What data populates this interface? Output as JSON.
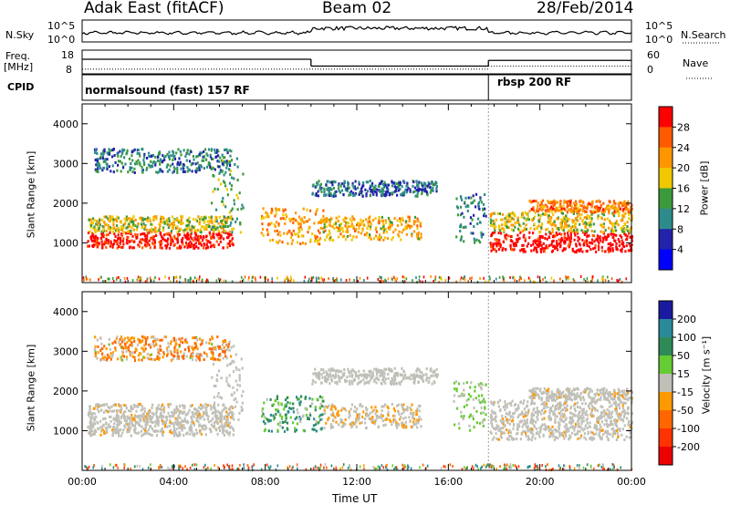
{
  "header": {
    "station": "Adak East (fitACF)",
    "beam": "Beam 02",
    "date": "28/Feb/2014"
  },
  "params_panel": {
    "nsky_label": "N.Sky",
    "nsky_ticks": [
      "10^5",
      "10^0"
    ],
    "nsearch_label": "N.Search",
    "freq_label": "Freq.",
    "freq_unit": "[MHz]",
    "freq_ticks": [
      "18",
      "8"
    ],
    "nave_label": "Nave",
    "nave_ticks": [
      "60",
      "0"
    ],
    "cpid_label": "CPID",
    "cpid_modes": [
      {
        "name": "normalsound (fast) 157 RF",
        "start_hour": 0.0,
        "end_hour": 17.75
      },
      {
        "name": "rbsp 200 RF",
        "start_hour": 17.75,
        "end_hour": 24.0
      }
    ]
  },
  "power_panel": {
    "ylabel": "Slant Range [km]",
    "cbar_label": "Power [dB]",
    "cbar_ticks": [
      "28",
      "24",
      "20",
      "16",
      "12",
      "8",
      "4"
    ],
    "cbar_colors": [
      "#ff0000",
      "#ff5a00",
      "#ff9600",
      "#f0c800",
      "#3c9a3c",
      "#2e8b8b",
      "#2222aa",
      "#0000ff"
    ]
  },
  "velocity_panel": {
    "ylabel": "Slant Range [km]",
    "cbar_label": "Velocity [m s⁻¹]",
    "cbar_ticks": [
      "200",
      "100",
      "50",
      "15",
      "-15",
      "-50",
      "-100",
      "-200"
    ],
    "cbar_colors": [
      "#1a1aa0",
      "#2a8a9a",
      "#2e8b57",
      "#66cc33",
      "#c0c0b8",
      "#ff9900",
      "#ff6600",
      "#ff3300",
      "#ee0000"
    ]
  },
  "xaxis": {
    "xlabel": "Time UT",
    "tick_labels": [
      "00:00",
      "04:00",
      "08:00",
      "12:00",
      "16:00",
      "20:00",
      "00:00"
    ]
  },
  "chart_data": {
    "type": "heatmap",
    "title": "Adak East (fitACF)  Beam 02  28/Feb/2014",
    "xlabel": "Time UT",
    "ylabel": "Slant Range [km]",
    "xlim_hours": [
      0,
      24
    ],
    "ylim_km": [
      0,
      4500
    ],
    "y_ticks_km": [
      1000,
      2000,
      3000,
      4000
    ],
    "freq_series_mhz": [
      {
        "start_hour": 0.0,
        "end_hour": 10.0,
        "value": 14.0
      },
      {
        "start_hour": 10.0,
        "end_hour": 17.75,
        "value": 11.0
      },
      {
        "start_hour": 17.75,
        "end_hour": 24.0,
        "value": 13.5
      }
    ],
    "nave_series": [
      {
        "start_hour": 0.0,
        "end_hour": 17.75,
        "value": 10
      },
      {
        "start_hour": 17.75,
        "end_hour": 24.0,
        "value": 18
      }
    ],
    "echo_bands": [
      {
        "start_hour": 0.2,
        "end_hour": 6.6,
        "range_km": [
          900,
          1300
        ],
        "power_db": 26,
        "velocity_ms": -5
      },
      {
        "start_hour": 0.2,
        "end_hour": 6.6,
        "range_km": [
          1300,
          1700
        ],
        "power_db": 14,
        "velocity_ms": -5
      },
      {
        "start_hour": 5.6,
        "end_hour": 7.0,
        "range_km": [
          1300,
          3200
        ],
        "power_db": 10,
        "velocity_ms": 0
      },
      {
        "start_hour": 0.5,
        "end_hour": 6.5,
        "range_km": [
          2800,
          3400
        ],
        "power_db": 6,
        "velocity_ms": -40
      },
      {
        "start_hour": 7.8,
        "end_hour": 10.5,
        "range_km": [
          1000,
          1900
        ],
        "power_db": 18,
        "velocity_ms": 60
      },
      {
        "start_hour": 10.5,
        "end_hour": 14.8,
        "range_km": [
          1100,
          1700
        ],
        "power_db": 16,
        "velocity_ms": -10
      },
      {
        "start_hour": 10.0,
        "end_hour": 15.5,
        "range_km": [
          2200,
          2600
        ],
        "power_db": 5,
        "velocity_ms": 0
      },
      {
        "start_hour": 16.2,
        "end_hour": 17.6,
        "range_km": [
          1000,
          2300
        ],
        "power_db": 7,
        "velocity_ms": 20
      },
      {
        "start_hour": 17.8,
        "end_hour": 24.0,
        "range_km": [
          800,
          1300
        ],
        "power_db": 28,
        "velocity_ms": -5
      },
      {
        "start_hour": 17.8,
        "end_hour": 24.0,
        "range_km": [
          1300,
          1800
        ],
        "power_db": 14,
        "velocity_ms": -5
      },
      {
        "start_hour": 19.5,
        "end_hour": 24.0,
        "range_km": [
          1800,
          2100
        ],
        "power_db": 20,
        "velocity_ms": -5
      }
    ]
  }
}
